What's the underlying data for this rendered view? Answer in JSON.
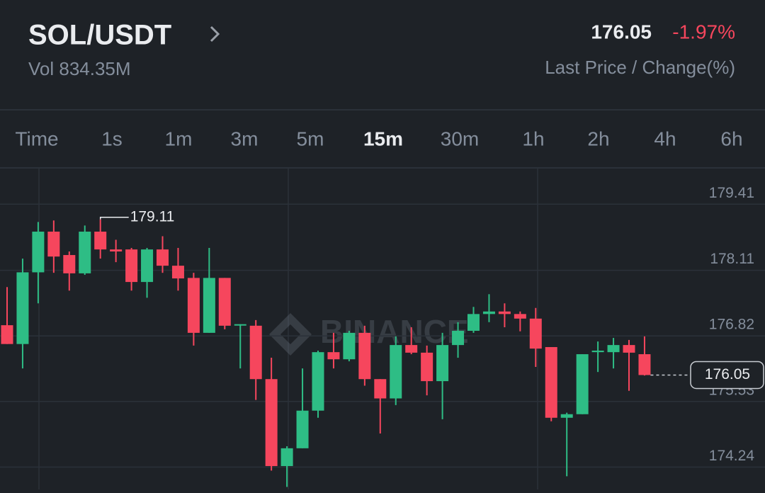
{
  "header": {
    "pair": "SOL/USDT",
    "volume": "Vol 834.35M",
    "last_price": "176.05",
    "change": "-1.97%",
    "caption": "Last Price / Change(%)"
  },
  "intervals": {
    "items": [
      "Time",
      "1s",
      "1m",
      "3m",
      "5m",
      "15m",
      "30m",
      "1h",
      "2h",
      "4h",
      "6h"
    ],
    "active": 5
  },
  "chart_data": {
    "type": "candlestick",
    "watermark": "BINANCE",
    "up_color": "#2ebd85",
    "down_color": "#f6465d",
    "ylim": [
      173.8,
      180.11
    ],
    "yticks": [
      174.24,
      175.53,
      176.82,
      178.11,
      179.41
    ],
    "grid": true,
    "open": [
      177.03,
      176.66,
      178.07,
      178.87,
      178.41,
      178.05,
      178.87,
      178.52,
      178.52,
      177.88,
      178.52,
      178.2,
      177.96,
      176.88,
      177.96,
      177.03,
      177.02,
      175.97,
      174.26,
      174.61,
      175.35,
      176.5,
      176.36,
      176.88,
      175.97,
      175.59,
      176.64,
      176.49,
      175.93,
      176.64,
      176.92,
      177.25,
      177.3,
      177.25,
      177.16,
      176.6,
      175.21,
      175.28,
      176.5,
      176.5,
      176.64,
      176.46
    ],
    "high": [
      177.78,
      178.34,
      179.06,
      179.09,
      178.48,
      178.99,
      179.11,
      178.71,
      178.55,
      178.55,
      178.78,
      178.55,
      178.06,
      178.55,
      177.96,
      177.05,
      177.13,
      176.39,
      174.65,
      176.18,
      176.53,
      176.88,
      176.92,
      177.02,
      175.97,
      176.81,
      176.99,
      176.63,
      176.88,
      177.09,
      177.39,
      177.64,
      177.46,
      177.3,
      177.37,
      176.6,
      175.31,
      176.46,
      176.71,
      176.78,
      176.74,
      176.81
    ],
    "low": [
      176.66,
      176.18,
      177.46,
      178.06,
      177.71,
      178.02,
      178.34,
      178.27,
      177.71,
      177.57,
      178.06,
      177.71,
      176.63,
      176.88,
      176.95,
      176.18,
      175.56,
      174.17,
      173.85,
      174.61,
      175.21,
      176.18,
      176.32,
      175.84,
      174.9,
      175.46,
      176.46,
      175.65,
      175.18,
      176.39,
      176.88,
      177.09,
      176.99,
      176.91,
      176.21,
      175.14,
      174.06,
      175.28,
      176.11,
      176.18,
      175.74,
      176.04
    ],
    "close": [
      176.66,
      178.07,
      178.87,
      178.38,
      178.05,
      178.87,
      178.52,
      178.48,
      177.88,
      178.52,
      178.2,
      177.95,
      176.88,
      177.96,
      177.02,
      177.05,
      175.97,
      174.26,
      174.61,
      175.35,
      176.5,
      176.36,
      176.88,
      175.97,
      175.59,
      176.64,
      176.49,
      175.93,
      176.64,
      176.92,
      177.25,
      177.3,
      177.25,
      177.16,
      176.57,
      175.21,
      175.28,
      176.46,
      176.53,
      176.64,
      176.49,
      176.05
    ]
  }
}
